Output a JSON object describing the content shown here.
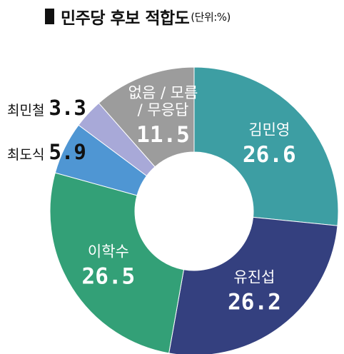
{
  "title": {
    "main": "민주당 후보 적합도",
    "unit": "(단위:%)"
  },
  "chart_data": {
    "type": "pie",
    "variant": "donut",
    "title": "민주당 후보 적합도",
    "unit": "(단위:%)",
    "start": "top, clockwise",
    "slices": [
      {
        "label": "김민영",
        "value": 26.6,
        "value_text": "26.6",
        "color": "#3d9ea3",
        "label_position": "inside",
        "text_color": "#ffffff"
      },
      {
        "label": "유진섭",
        "value": 26.2,
        "value_text": "26.2",
        "color": "#34407f",
        "label_position": "inside",
        "text_color": "#ffffff"
      },
      {
        "label": "이학수",
        "value": 26.5,
        "value_text": "26.5",
        "color": "#33a077",
        "label_position": "inside",
        "text_color": "#ffffff"
      },
      {
        "label": "최도식",
        "value": 5.9,
        "value_text": "5.9",
        "color": "#4f96d3",
        "label_position": "outside",
        "text_color": "#111111"
      },
      {
        "label": "최민철",
        "value": 3.3,
        "value_text": "3.3",
        "color": "#a8a9d8",
        "label_position": "outside",
        "text_color": "#111111"
      },
      {
        "label_lines": [
          "없음 / 모름",
          "/ 무응답"
        ],
        "value": 11.5,
        "value_text": "11.5",
        "color": "#9c9c9c",
        "label_position": "inside",
        "text_color": "#ffffff"
      }
    ]
  }
}
